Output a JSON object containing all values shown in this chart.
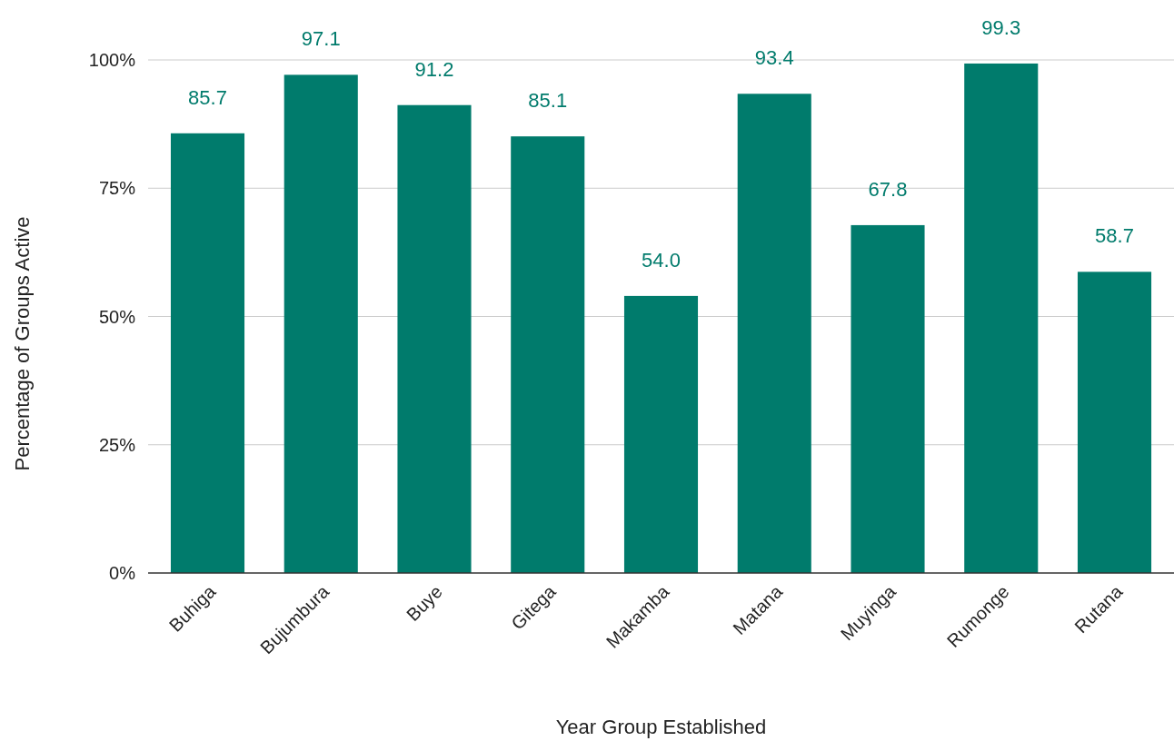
{
  "chart_data": {
    "type": "bar",
    "xlabel": "Year Group Established",
    "ylabel": "Percentage of Groups Active",
    "categories": [
      "Buhiga",
      "Bujumbura",
      "Buye",
      "Gitega",
      "Makamba",
      "Matana",
      "Muyinga",
      "Rumonge",
      "Rutana"
    ],
    "values": [
      85.7,
      97.1,
      91.2,
      85.1,
      54.0,
      93.4,
      67.8,
      99.3,
      58.7
    ],
    "value_labels": [
      "85.7",
      "97.1",
      "91.2",
      "85.1",
      "54.0",
      "93.4",
      "67.8",
      "99.3",
      "58.7"
    ],
    "color": "#007b6c",
    "ylim": [
      0,
      100
    ],
    "yticks": [
      {
        "value": 0,
        "label": "0%"
      },
      {
        "value": 25,
        "label": "25%"
      },
      {
        "value": 50,
        "label": "50%"
      },
      {
        "value": 75,
        "label": "75%"
      },
      {
        "value": 100,
        "label": "100%"
      }
    ],
    "grid": "y"
  }
}
